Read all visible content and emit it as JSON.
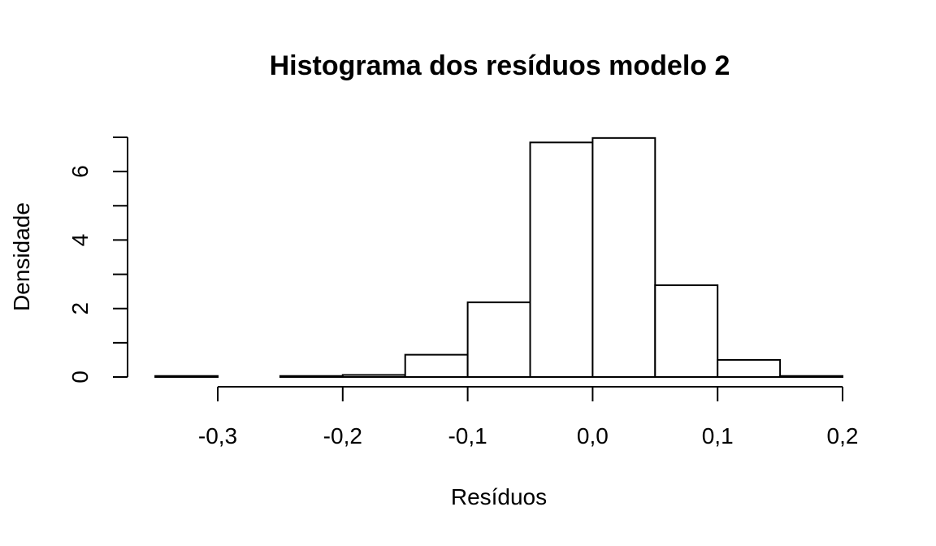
{
  "chart_data": {
    "type": "bar",
    "title": "Histograma dos resíduos modelo 2",
    "xlabel": "Resíduos",
    "ylabel": "Densidade",
    "bin_edges": [
      -0.35,
      -0.3,
      -0.25,
      -0.2,
      -0.15,
      -0.1,
      -0.05,
      0.0,
      0.05,
      0.1,
      0.15,
      0.2
    ],
    "values": [
      0.03,
      0.0,
      0.03,
      0.06,
      0.65,
      2.18,
      6.85,
      6.98,
      2.68,
      0.5,
      0.03
    ],
    "xlim": [
      -0.35,
      0.2
    ],
    "ylim": [
      0,
      7
    ],
    "x_ticks": [
      -0.3,
      -0.2,
      -0.1,
      0.0,
      0.1,
      0.2
    ],
    "x_tick_labels": [
      "-0,3",
      "-0,2",
      "-0,1",
      "0,0",
      "0,1",
      "0,2"
    ],
    "y_ticks": [
      0,
      1,
      2,
      3,
      4,
      5,
      6,
      7
    ],
    "y_tick_labels": [
      "0",
      "",
      "2",
      "",
      "4",
      "",
      "6",
      ""
    ],
    "grid": false,
    "legend": "none"
  }
}
